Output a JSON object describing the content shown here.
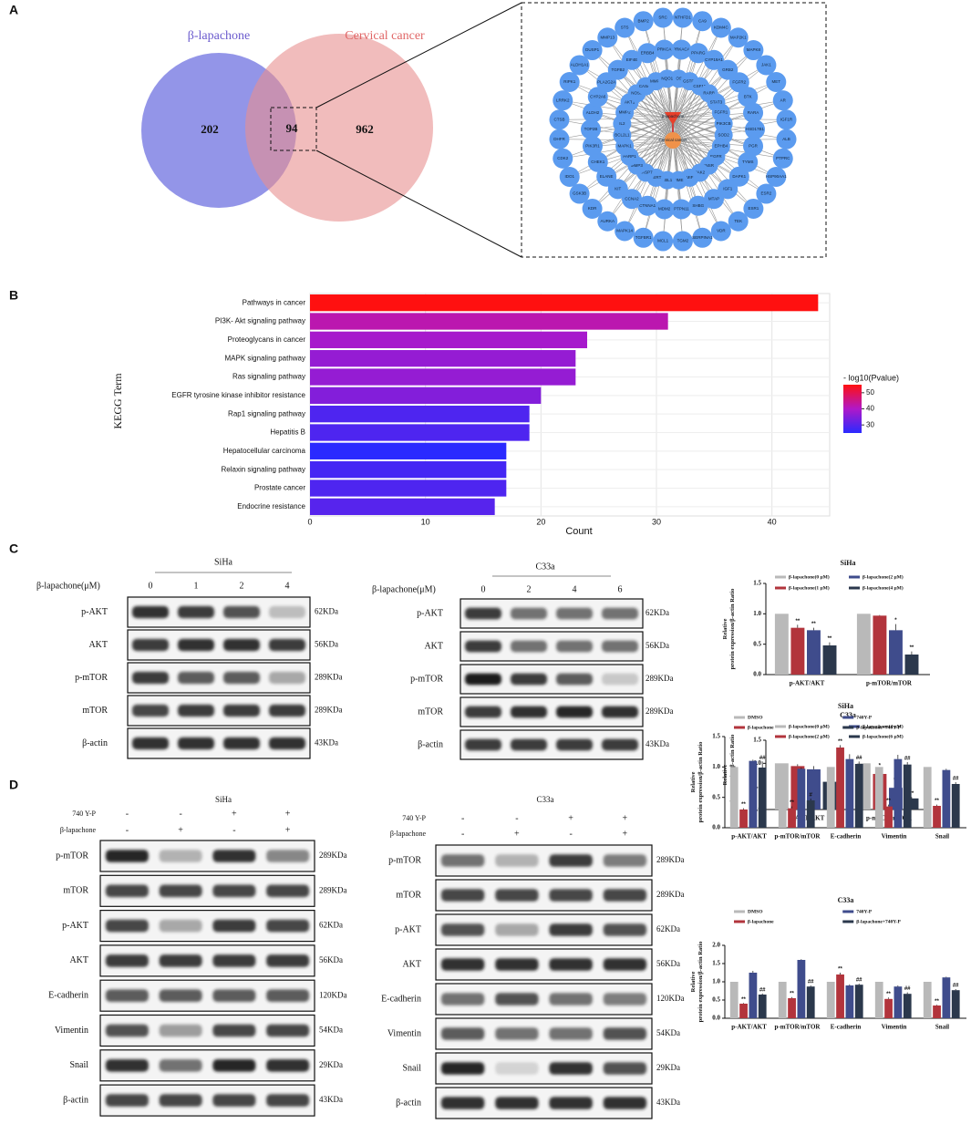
{
  "panel_labels": [
    "A",
    "B",
    "C",
    "D"
  ],
  "venn": {
    "left_label": "β-lapachone",
    "right_label": "Cervical cancer",
    "left_only": 202,
    "overlap": 94,
    "right_only": 962
  },
  "network": {
    "center_nodes": [
      "β-lapachone",
      "Cervical cancer"
    ],
    "nodes": [
      "NTHFD1",
      "CA9",
      "KDM4C",
      "MAP2K1",
      "MAPK8",
      "JAK1",
      "MET",
      "AR",
      "IGF1R",
      "ALB",
      "PTPRC",
      "HSP90AA1",
      "ESR2",
      "ESR1",
      "TEK",
      "VDR",
      "SERPINA1",
      "TGM2",
      "MCL1",
      "TGFBR1",
      "MAPK14",
      "AURKA",
      "KDR",
      "GSK3B",
      "IDO1",
      "CDK2",
      "DHFR",
      "CTSB",
      "LRRK2",
      "RIPK1",
      "ALDH1A1",
      "DUSP1",
      "MMP13",
      "STS",
      "BMP2",
      "SRC",
      "PRKACA",
      "PPARG",
      "CYP19A1",
      "GRB2",
      "FGFR2",
      "BTK",
      "RARA",
      "HSD17B1",
      "PGR",
      "TYMS",
      "DAPK1",
      "IGF1",
      "MTAP",
      "SHBG",
      "PTPN11",
      "MDM2",
      "CTNNA1",
      "CCNA2",
      "KIT",
      "ELANE",
      "CHEK1",
      "PIK3R1",
      "TOP2B",
      "ALDH2",
      "CYP2A6",
      "PLA2G2A",
      "TGFB2",
      "EIF4E",
      "ERBB4",
      "PRKCA",
      "NOS2",
      "GSTP1",
      "CSF1R",
      "RARB",
      "STAT3",
      "FGFR1",
      "PIK3CB",
      "SOD2",
      "EPHB4",
      "EGFR",
      "INSR",
      "JAK2",
      "MIF",
      "MME",
      "ABL1",
      "TERT",
      "CASP7",
      "MMP3",
      "PARP1",
      "MAPK1",
      "BCL2L1",
      "IL2",
      "MMP2",
      "AKT1",
      "NOS3",
      "CASP3",
      "MMP9",
      "NQO1"
    ]
  },
  "blots_c": [
    {
      "cell": "SiHa",
      "dose_label": "β-lapachone(μM)",
      "doses": [
        0,
        1,
        2,
        4
      ],
      "rows": [
        {
          "protein": "p-AKT",
          "size": "62KDa"
        },
        {
          "protein": "AKT",
          "size": "56KDa"
        },
        {
          "protein": "p-mTOR",
          "size": "289KDa"
        },
        {
          "protein": "mTOR",
          "size": "289KDa"
        },
        {
          "protein": "β-actin",
          "size": "43KDa"
        }
      ]
    },
    {
      "cell": "C33a",
      "dose_label": "β-lapachone(μM)",
      "doses": [
        0,
        2,
        4,
        6
      ],
      "rows": [
        {
          "protein": "p-AKT",
          "size": "62KDa"
        },
        {
          "protein": "AKT",
          "size": "56KDa"
        },
        {
          "protein": "p-mTOR",
          "size": "289KDa"
        },
        {
          "protein": "mTOR",
          "size": "289KDa"
        },
        {
          "protein": "β-actin",
          "size": "43KDa"
        }
      ]
    }
  ],
  "blots_d": [
    {
      "cell": "SiHa",
      "treatments": [
        {
          "name": "740 Y-P",
          "signs": [
            "-",
            "-",
            "+",
            "+"
          ]
        },
        {
          "name": "β-lapachone",
          "signs": [
            "-",
            "+",
            "-",
            "+"
          ]
        }
      ],
      "rows": [
        {
          "protein": "p-mTOR",
          "size": "289KDa"
        },
        {
          "protein": "mTOR",
          "size": "289KDa"
        },
        {
          "protein": "p-AKT",
          "size": "62KDa"
        },
        {
          "protein": "AKT",
          "size": "56KDa"
        },
        {
          "protein": "E-cadherin",
          "size": "120KDa"
        },
        {
          "protein": "Vimentin",
          "size": "54KDa"
        },
        {
          "protein": "Snail",
          "size": "29KDa"
        },
        {
          "protein": "β-actin",
          "size": "43KDa"
        }
      ]
    },
    {
      "cell": "C33a",
      "treatments": [
        {
          "name": "740 Y-P",
          "signs": [
            "-",
            "-",
            "+",
            "+"
          ]
        },
        {
          "name": "β-lapachone",
          "signs": [
            "-",
            "+",
            "-",
            "+"
          ]
        }
      ],
      "rows": [
        {
          "protein": "p-mTOR",
          "size": "289KDa"
        },
        {
          "protein": "mTOR",
          "size": "289KDa"
        },
        {
          "protein": "p-AKT",
          "size": "62KDa"
        },
        {
          "protein": "AKT",
          "size": "56KDa"
        },
        {
          "protein": "E-cadherin",
          "size": "120KDa"
        },
        {
          "protein": "Vimentin",
          "size": "54KDa"
        },
        {
          "protein": "Snail",
          "size": "29KDa"
        },
        {
          "protein": "β-actin",
          "size": "43KDa"
        }
      ]
    }
  ],
  "chart_data": [
    {
      "type": "bar",
      "orientation": "horizontal",
      "ylabel": "KEGG Term",
      "xlabel": "Count",
      "legend_title": "- log10(Pvalue)",
      "categories": [
        "Pathways in cancer",
        "PI3K- Akt signaling pathway",
        "Proteoglycans in cancer",
        "MAPK signaling pathway",
        "Ras signaling pathway",
        "EGFR tyrosine kinase inhibitor resistance",
        "Rap1 signaling pathway",
        "Hepatitis B",
        "Hepatocellular carcinoma",
        "Relaxin signaling pathway",
        "Prostate cancer",
        "Endocrine resistance"
      ],
      "values": [
        44,
        31,
        24,
        23,
        23,
        20,
        19,
        19,
        17,
        17,
        17,
        16
      ],
      "color_values": [
        55,
        42,
        39,
        37,
        37,
        35,
        29,
        29,
        25,
        28,
        29,
        30
      ],
      "color_scale": [
        "#2a2aff",
        "#b018c8",
        "#ff1010"
      ],
      "clim": [
        25,
        55
      ],
      "cticks": [
        30,
        40,
        50
      ],
      "xlim": [
        0,
        45
      ],
      "xticks": [
        0,
        10,
        20,
        30,
        40
      ],
      "grid": true
    },
    {
      "type": "bar",
      "title": "SiHa",
      "ylabel": "Relative protein expression/β-actin Ratio",
      "categories": [
        "p-AKT/AKT",
        "p-mTOR/mTOR"
      ],
      "series": [
        {
          "name": "β-lapachone(0 μM)",
          "color": "#b9b9b9",
          "values": [
            1.0,
            1.0
          ],
          "errors": [
            0.0,
            0.0
          ],
          "sig": [
            null,
            null
          ]
        },
        {
          "name": "β-lapachone(1 μM)",
          "color": "#b2343c",
          "values": [
            0.77,
            0.97
          ],
          "errors": [
            0.05,
            0.01
          ],
          "sig": [
            "**",
            null
          ]
        },
        {
          "name": "β-lapachone(2 μM)",
          "color": "#3f4c8c",
          "values": [
            0.73,
            0.73
          ],
          "errors": [
            0.04,
            0.1
          ],
          "sig": [
            "**",
            "*"
          ]
        },
        {
          "name": "β-lapachone(4 μM)",
          "color": "#2b384c",
          "values": [
            0.48,
            0.33
          ],
          "errors": [
            0.05,
            0.05
          ],
          "sig": [
            "**",
            "**"
          ]
        }
      ],
      "ylim": [
        0,
        1.5
      ],
      "yticks": [
        {
          "value": 0,
          "label": "0.0"
        },
        {
          "value": 0.5,
          "label": "0.5"
        },
        {
          "value": 1,
          "label": "1.0"
        },
        {
          "value": 1.5,
          "label": "1.5"
        }
      ]
    },
    {
      "type": "bar",
      "title": "C33a",
      "ylabel": "Relative protein expression/β-actin Ratio",
      "categories": [
        "p-AKT/AKT",
        "p-mTOR/mTOR"
      ],
      "series": [
        {
          "name": "β-lapachone(0 μM)",
          "color": "#b9b9b9",
          "values": [
            1.0,
            1.0
          ],
          "errors": [
            0.0,
            0.0
          ],
          "sig": [
            null,
            null
          ]
        },
        {
          "name": "β-lapachone(2 μM)",
          "color": "#b2343c",
          "values": [
            0.94,
            0.77
          ],
          "errors": [
            0.04,
            0.1
          ],
          "sig": [
            null,
            "*"
          ]
        },
        {
          "name": "β-lapachone(4 μM)",
          "color": "#3f4c8c",
          "values": [
            0.87,
            0.47
          ],
          "errors": [
            0.07,
            0.08
          ],
          "sig": [
            null,
            "**"
          ]
        },
        {
          "name": "β-lapachone(6 μM)",
          "color": "#2b384c",
          "values": [
            0.6,
            0.24
          ],
          "errors": [
            0.05,
            0.03
          ],
          "sig": [
            "**",
            "**"
          ]
        }
      ],
      "ylim": [
        0,
        1.5
      ],
      "yticks": [
        {
          "value": 0,
          "label": "0.0"
        },
        {
          "value": 0.5,
          "label": "0.5"
        },
        {
          "value": 1,
          "label": "1.0"
        },
        {
          "value": 1.5,
          "label": "1.5"
        }
      ]
    },
    {
      "type": "bar",
      "title": "SiHa",
      "ylabel": "Relative protein expression/β-actin Ratio",
      "categories": [
        "p-AKT/AKT",
        "p-mTOR/mTOR",
        "E-cadherin",
        "Vimentin",
        "Snail"
      ],
      "series": [
        {
          "name": "DMSO",
          "color": "#b9b9b9",
          "values": [
            1.0,
            1.0,
            1.0,
            1.0,
            1.0
          ],
          "errors": [
            0.0,
            0.0,
            0.0,
            0.0,
            0.0
          ],
          "sig": [
            null,
            null,
            null,
            null,
            null
          ]
        },
        {
          "name": "β-lapachone",
          "color": "#b2343c",
          "values": [
            0.3,
            0.32,
            1.32,
            0.35,
            0.36
          ],
          "errors": [
            0.02,
            0.03,
            0.04,
            0.03,
            0.02
          ],
          "sig": [
            "**",
            "**",
            "**",
            "**",
            "**"
          ]
        },
        {
          "name": "740Y-P",
          "color": "#3f4c8c",
          "values": [
            1.1,
            0.97,
            1.13,
            1.13,
            0.95
          ],
          "errors": [
            0.02,
            0.02,
            0.08,
            0.07,
            0.02
          ],
          "sig": [
            null,
            null,
            null,
            null,
            null
          ]
        },
        {
          "name": "β-lapachone+740Y-P",
          "color": "#2b384c",
          "values": [
            0.99,
            0.45,
            1.05,
            1.04,
            0.72
          ],
          "errors": [
            0.1,
            0.03,
            0.04,
            0.04,
            0.03
          ],
          "sig": [
            "##",
            "#",
            "##",
            "##",
            "##"
          ]
        }
      ],
      "ylim": [
        0,
        1.5
      ],
      "yticks": [
        {
          "value": 0,
          "label": "0.0"
        },
        {
          "value": 0.5,
          "label": "0.5"
        },
        {
          "value": 1,
          "label": "1.0"
        },
        {
          "value": 1.5,
          "label": "1.5"
        }
      ]
    },
    {
      "type": "bar",
      "title": "C33a",
      "ylabel": "Relative protein expression/β-actin Ratio",
      "categories": [
        "p-AKT/AKT",
        "p-mTOR/mTOR",
        "E-cadherin",
        "Vimentin",
        "Snail"
      ],
      "series": [
        {
          "name": "DMSO",
          "color": "#b9b9b9",
          "values": [
            1.0,
            1.0,
            1.0,
            1.0,
            1.0
          ],
          "errors": [
            0.0,
            0.0,
            0.0,
            0.0,
            0.0
          ],
          "sig": [
            null,
            null,
            null,
            null,
            null
          ]
        },
        {
          "name": "β-lapachone",
          "color": "#b2343c",
          "values": [
            0.4,
            0.55,
            1.2,
            0.53,
            0.35
          ],
          "errors": [
            0.02,
            0.03,
            0.05,
            0.04,
            0.02
          ],
          "sig": [
            "**",
            "**",
            "**",
            "**",
            "**"
          ]
        },
        {
          "name": "740Y-P",
          "color": "#3f4c8c",
          "values": [
            1.25,
            1.6,
            0.9,
            0.87,
            1.12
          ],
          "errors": [
            0.05,
            0.02,
            0.03,
            0.03,
            0.02
          ],
          "sig": [
            null,
            null,
            null,
            null,
            null
          ]
        },
        {
          "name": "β-lapachone+740Y-P",
          "color": "#2b384c",
          "values": [
            0.65,
            0.87,
            0.92,
            0.67,
            0.77
          ],
          "errors": [
            0.03,
            0.03,
            0.03,
            0.04,
            0.03
          ],
          "sig": [
            "##",
            "##",
            "##",
            "##",
            "##"
          ]
        }
      ],
      "ylim": [
        0,
        2
      ],
      "yticks": [
        {
          "value": 0,
          "label": "0.0"
        },
        {
          "value": 0.5,
          "label": "0.5"
        },
        {
          "value": 1,
          "label": "1.0"
        },
        {
          "value": 1.5,
          "label": "1.5"
        },
        {
          "value": 2,
          "label": "2.0"
        }
      ]
    }
  ]
}
